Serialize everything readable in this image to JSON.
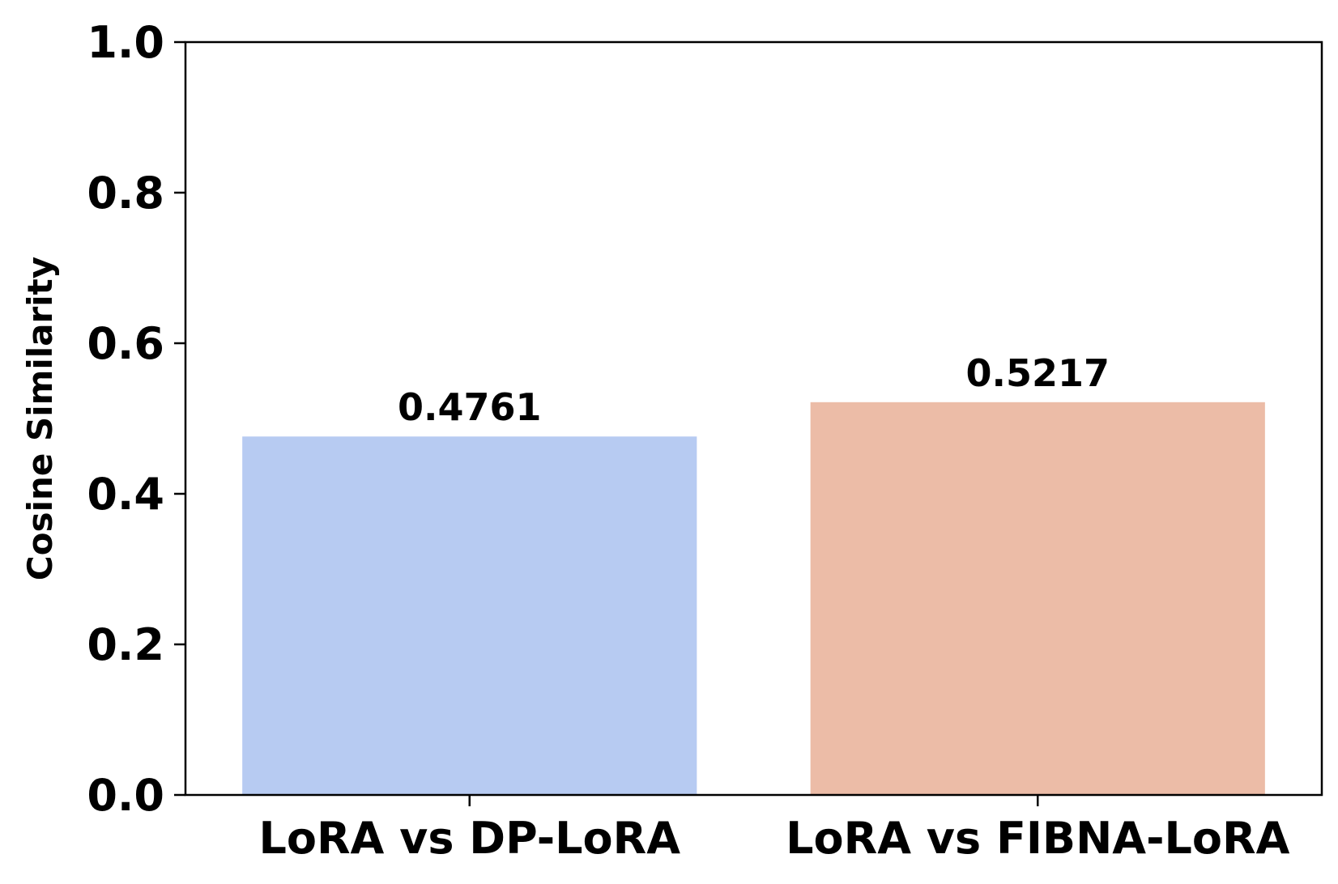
{
  "chart_data": {
    "type": "bar",
    "title": "",
    "xlabel": "",
    "ylabel": "Cosine Similarity",
    "categories": [
      "LoRA vs DP-LoRA",
      "LoRA vs FIBNA-LoRA"
    ],
    "values": [
      0.4761,
      0.5217
    ],
    "value_labels": [
      "0.4761",
      "0.5217"
    ],
    "colors": [
      "#b7cbf2",
      "#ecbca7"
    ],
    "ylim": [
      0,
      1.0
    ],
    "yticks": [
      0.0,
      0.2,
      0.4,
      0.6,
      0.8,
      1.0
    ],
    "ytick_labels": [
      "0.0",
      "0.2",
      "0.4",
      "0.6",
      "0.8",
      "1.0"
    ],
    "grid": false,
    "legend": "none"
  }
}
